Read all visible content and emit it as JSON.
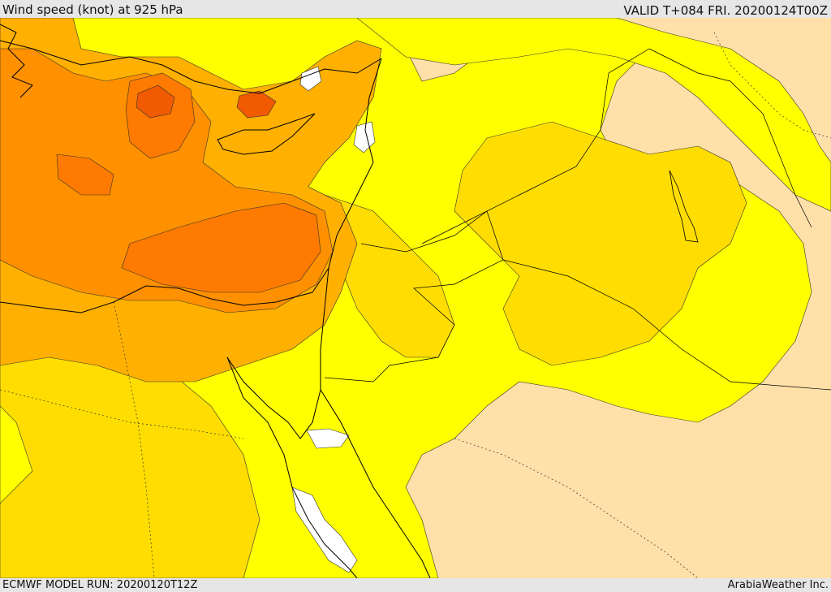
{
  "header": {
    "title": "Wind speed (knot) at 925 hPa",
    "valid": "VALID T+084 FRI. 20200124T00Z"
  },
  "footer": {
    "model_run": "ECMWF MODEL RUN: 20200120T12Z",
    "credit": "ArabiaWeather Inc."
  },
  "map": {
    "colors": {
      "background": "#ffe0a8",
      "yellow": "#ffff00",
      "gold": "#ffdd00",
      "light_orange": "#ffb000",
      "orange": "#ff9000",
      "dark_orange": "#ff7a00",
      "deep_orange": "#f05a00",
      "calm_white": "#ffffff",
      "coastline": "#000000"
    },
    "legend": "none"
  }
}
